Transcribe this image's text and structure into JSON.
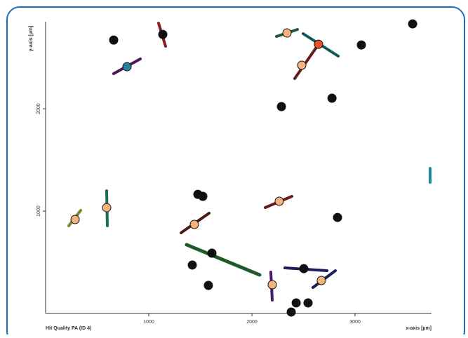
{
  "chart_data": {
    "type": "scatter",
    "title": "Hit Quality PA (ID 4)",
    "x_label": "x-axis [µm]",
    "y_label": "y-axis [µm]",
    "xlim": [
      0,
      3741
    ],
    "ylim": [
      0,
      2850
    ],
    "xticks": [
      1000,
      2000,
      3000
    ],
    "yticks": [
      1000,
      2000
    ],
    "series": [
      {
        "color": "#111111",
        "x": [
          660,
          1136,
          2286,
          2776,
          3061,
          3558,
          1476,
          1524,
          2830,
          1422,
          1612,
          1578,
          2503,
          2429,
          2544,
          2381
        ],
        "values": [
          2671,
          2726,
          2021,
          2103,
          2623,
          2829,
          1164,
          1144,
          938,
          473,
          589,
          274,
          438,
          103,
          103,
          14
        ]
      },
      {
        "color": "#f5b27a",
        "x": [
          2340,
          2483,
          2265,
          1442,
          592,
          286,
          2197,
          2673
        ],
        "values": [
          2740,
          2425,
          1096,
          870,
          1034,
          918,
          281,
          322
        ]
      },
      {
        "color": "#2b7fa0",
        "x": [
          789
        ],
        "values": [
          2411
        ]
      },
      {
        "color": "#e8532b",
        "x": [
          2646
        ],
        "values": [
          2630
        ]
      }
    ]
  }
}
